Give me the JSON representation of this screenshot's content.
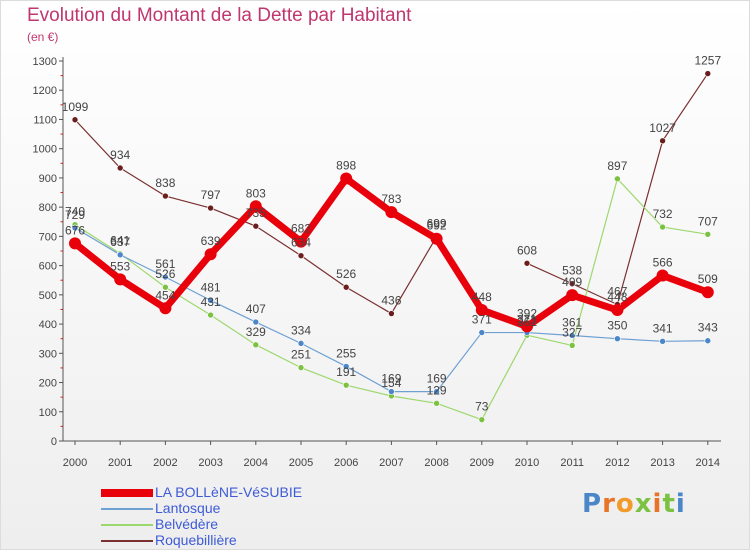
{
  "title": "Evolution du Montant de la Dette par Habitant",
  "subtitle": "(en €)",
  "logo": {
    "text": "Proxiti",
    "colors": [
      "#4a86c8",
      "#e8742a",
      "#f29b2b",
      "#7cc242",
      "#e8742a",
      "#7cc242",
      "#4a86c8"
    ]
  },
  "chart_data": {
    "type": "line",
    "x": [
      "2000",
      "2001",
      "2002",
      "2003",
      "2004",
      "2005",
      "2006",
      "2007",
      "2008",
      "2009",
      "2010",
      "2011",
      "2012",
      "2013",
      "2014"
    ],
    "ylim": [
      0,
      1300
    ],
    "yticks": [
      0,
      100,
      200,
      300,
      400,
      500,
      600,
      700,
      800,
      900,
      1000,
      1100,
      1200,
      1300
    ],
    "grid": false,
    "legend_position": "bottom-left",
    "series": [
      {
        "name": "LA BOLLèNE-VéSUBIE",
        "color": "#e8000b",
        "marker_color": "#e8000b",
        "width": 7,
        "marker_r": 6,
        "values": [
          676,
          553,
          454,
          639,
          803,
          682,
          898,
          783,
          692,
          448,
          392,
          499,
          448,
          566,
          509
        ]
      },
      {
        "name": "Lantosque",
        "color": "#6ea0d2",
        "marker_color": "#4a86c8",
        "width": 1.2,
        "marker_r": 3,
        "values": [
          729,
          637,
          561,
          481,
          407,
          334,
          255,
          169,
          169,
          371,
          371,
          361,
          350,
          341,
          343
        ]
      },
      {
        "name": "Belvédère",
        "color": "#9dd86e",
        "marker_color": "#7cc242",
        "width": 1.2,
        "marker_r": 3,
        "values": [
          740,
          641,
          526,
          431,
          329,
          251,
          191,
          154,
          129,
          73,
          362,
          327,
          897,
          732,
          707
        ]
      },
      {
        "name": "Roquebillière",
        "color": "#7a3030",
        "marker_color": "#6b1d1d",
        "width": 1.2,
        "marker_r": 3,
        "values": [
          1099,
          934,
          838,
          797,
          735,
          634,
          526,
          436,
          699,
          null,
          608,
          538,
          467,
          1027,
          1257
        ]
      }
    ]
  }
}
